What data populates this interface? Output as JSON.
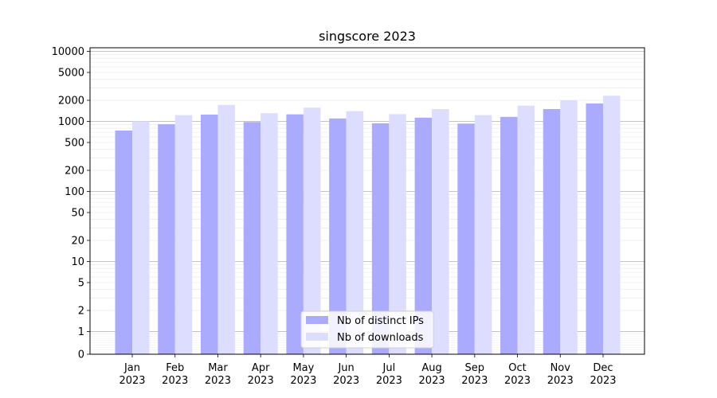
{
  "chart_data": {
    "type": "bar",
    "title": "singscore 2023",
    "xlabel": "",
    "ylabel": "",
    "categories": [
      "Jan\n2023",
      "Feb\n2023",
      "Mar\n2023",
      "Apr\n2023",
      "May\n2023",
      "Jun\n2023",
      "Jul\n2023",
      "Aug\n2023",
      "Sep\n2023",
      "Oct\n2023",
      "Nov\n2023",
      "Dec\n2023"
    ],
    "series": [
      {
        "name": "Nb of distinct IPs",
        "color": "#aaaaff",
        "values": [
          740,
          910,
          1250,
          980,
          1260,
          1100,
          940,
          1130,
          930,
          1160,
          1500,
          1800
        ]
      },
      {
        "name": "Nb of downloads",
        "color": "#ddddff",
        "values": [
          1000,
          1230,
          1720,
          1310,
          1570,
          1400,
          1270,
          1500,
          1230,
          1680,
          2000,
          2320
        ]
      }
    ],
    "y_scale": "symlog",
    "ylim": [
      0,
      10000
    ],
    "y_ticks": [
      0,
      1,
      2,
      5,
      10,
      20,
      50,
      100,
      200,
      500,
      1000,
      2000,
      5000,
      10000
    ],
    "y_tick_labels": [
      "0",
      "1",
      "2",
      "5",
      "10",
      "20",
      "50",
      "100",
      "200",
      "500",
      "1000",
      "2000",
      "5000",
      "10000"
    ],
    "grid": "horizontal major and minor",
    "legend_position": "bottom-center"
  }
}
